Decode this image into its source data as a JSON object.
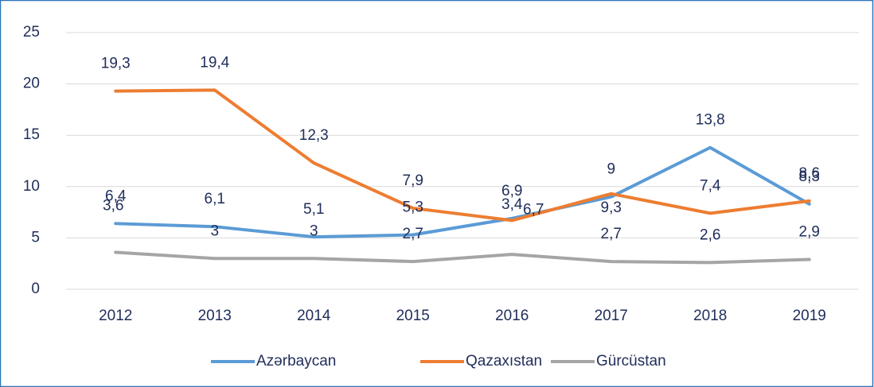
{
  "chart_data": {
    "type": "line",
    "categories": [
      "2012",
      "2013",
      "2014",
      "2015",
      "2016",
      "2017",
      "2018",
      "2019"
    ],
    "series": [
      {
        "name": "Azərbaycan",
        "color": "#5b9bd5",
        "values": [
          6.4,
          6.1,
          5.1,
          5.3,
          6.9,
          9,
          13.8,
          8.3
        ],
        "value_labels": [
          "6,4",
          "6,1",
          "5,1",
          "5,3",
          "6,9",
          "9",
          "13,8",
          "8,3"
        ]
      },
      {
        "name": "Qazaxıstan",
        "color": "#ed7d31",
        "values": [
          19.3,
          19.4,
          12.3,
          7.9,
          6.7,
          9.3,
          7.4,
          8.6
        ],
        "value_labels": [
          "19,3",
          "19,4",
          "12,3",
          "7,9",
          "6,7",
          "9,3",
          "7,4",
          "8,6"
        ]
      },
      {
        "name": "Gürcüstan",
        "color": "#a5a5a5",
        "values": [
          3.6,
          3,
          3,
          2.7,
          3.4,
          2.7,
          2.6,
          2.9
        ],
        "value_labels": [
          "3,6",
          "3",
          "3",
          "2,7",
          "3,4",
          "2,7",
          "2,6",
          "2,9"
        ]
      }
    ],
    "ylim": [
      0,
      25
    ],
    "yticks": [
      0,
      5,
      10,
      15,
      20,
      25
    ],
    "grid": true,
    "legend": "bottom"
  }
}
